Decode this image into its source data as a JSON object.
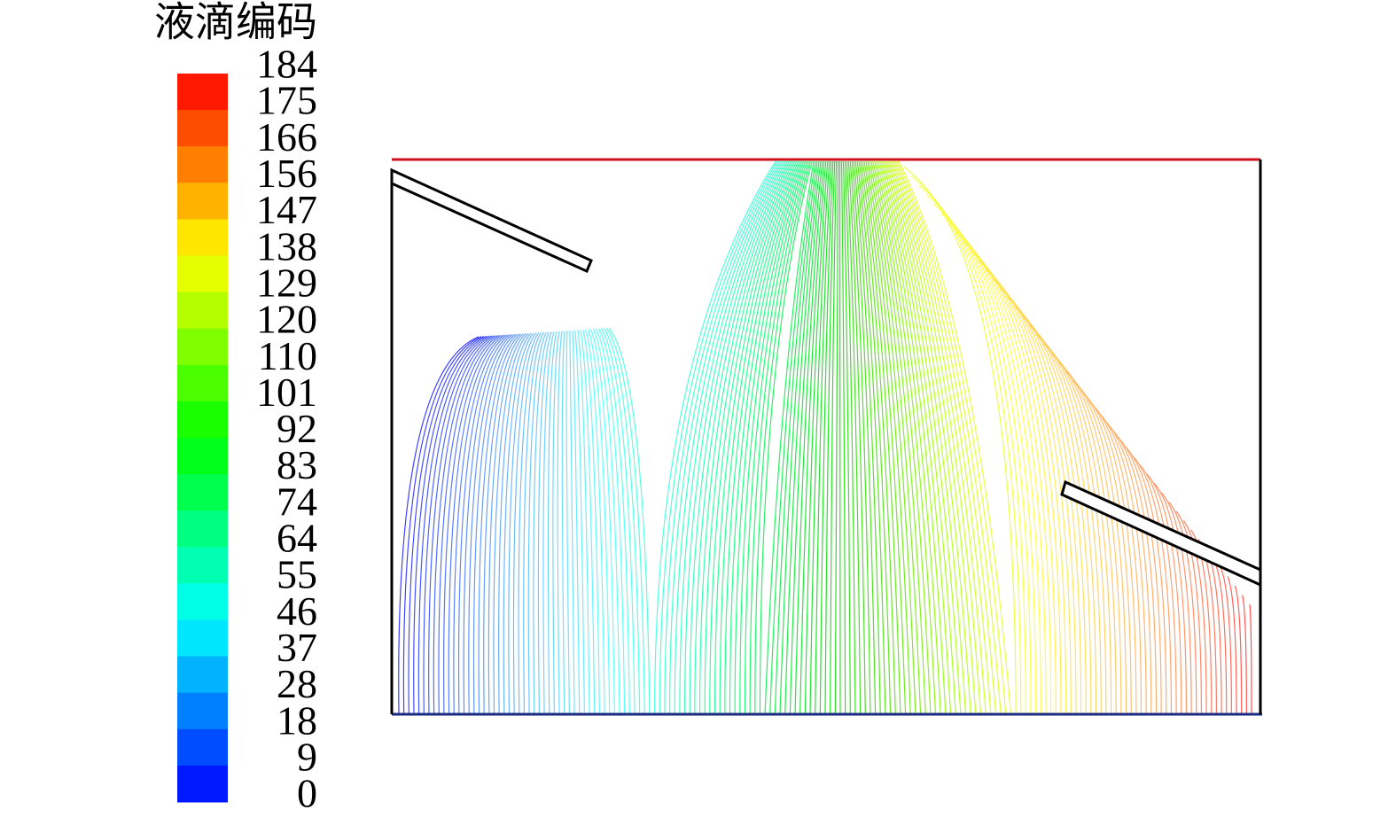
{
  "legend": {
    "title": "液滴编码",
    "ticks": [
      "184",
      "175",
      "166",
      "156",
      "147",
      "138",
      "129",
      "120",
      "110",
      "101",
      "92",
      "83",
      "74",
      "64",
      "55",
      "46",
      "37",
      "28",
      "18",
      "9",
      "0"
    ]
  }
}
